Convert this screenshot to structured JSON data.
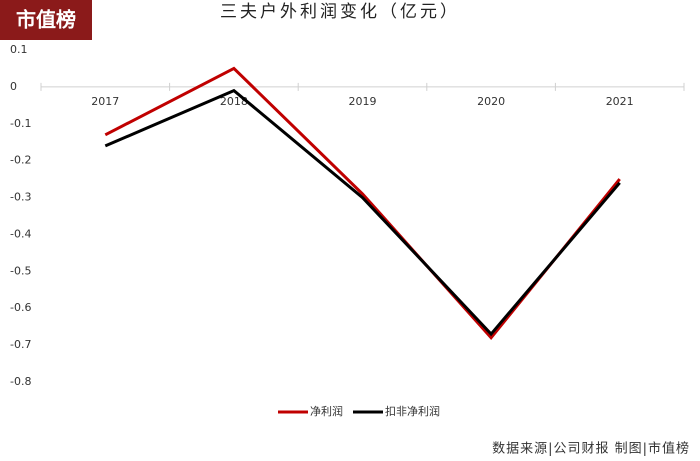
{
  "chart_data": {
    "type": "line",
    "title": "三夫户外利润变化（亿元）",
    "annotations": [
      "市值榜",
      "数据来源|公司财报   制图|市值榜"
    ],
    "categories": [
      "2017",
      "2018",
      "2019",
      "2020",
      "2021"
    ],
    "series": [
      {
        "name": "净利润",
        "color": "#c00000",
        "values": [
          -0.13,
          0.05,
          -0.29,
          -0.68,
          -0.25
        ]
      },
      {
        "name": "扣非净利润",
        "color": "#000000",
        "values": [
          -0.16,
          -0.01,
          -0.3,
          -0.67,
          -0.26
        ]
      }
    ],
    "ylim": [
      -0.8,
      0.1
    ],
    "yticks": [
      0.1,
      0,
      -0.1,
      -0.2,
      -0.3,
      -0.4,
      -0.5,
      -0.6,
      -0.7,
      -0.8
    ],
    "legend": "bottom"
  }
}
